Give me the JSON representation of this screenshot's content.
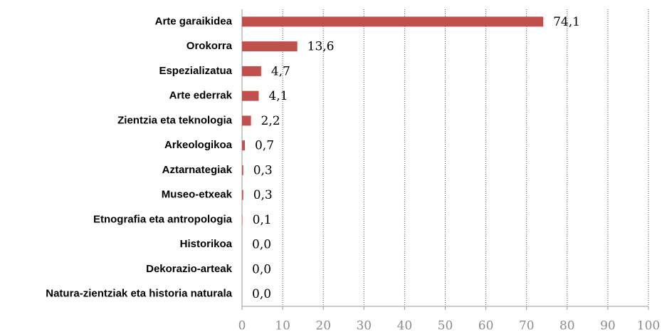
{
  "chart_data": {
    "type": "bar",
    "orientation": "horizontal",
    "categories": [
      "Arte garaikidea",
      "Orokorra",
      "Espezializatua",
      "Arte ederrak",
      "Zientzia eta teknologia",
      "Arkeologikoa",
      "Aztarnategiak",
      "Museo-etxeak",
      "Etnografia eta antropologia",
      "Historikoa",
      "Dekorazio-arteak",
      "Natura-zientziak eta historia naturala"
    ],
    "values": [
      74.1,
      13.6,
      4.7,
      4.1,
      2.2,
      0.7,
      0.3,
      0.3,
      0.1,
      0.0,
      0.0,
      0.0
    ],
    "value_labels": [
      "74,1",
      "13,6",
      "4,7",
      "4,1",
      "2,2",
      "0,7",
      "0,3",
      "0,3",
      "0,1",
      "0,0",
      "0,0",
      "0,0"
    ],
    "color": "#c0504d",
    "xlim": [
      0,
      100
    ],
    "xticks": [
      0,
      10,
      20,
      30,
      40,
      50,
      60,
      70,
      80,
      90,
      100
    ],
    "grid": true
  }
}
